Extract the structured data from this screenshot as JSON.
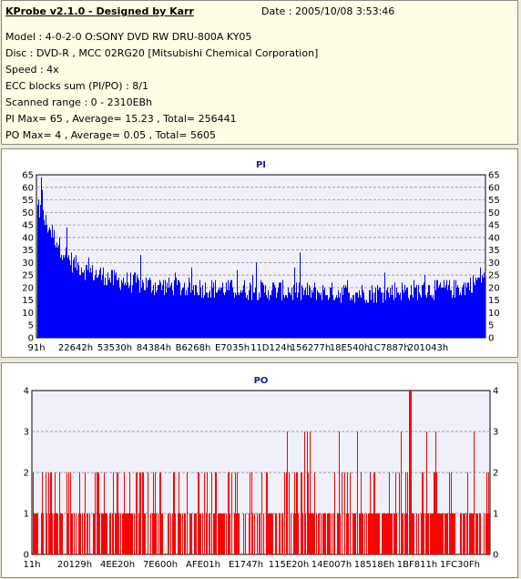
{
  "info": {
    "title": "KProbe v2.1.0 - Designed by Karr",
    "date": "Date : 2005/10/08 3:53:46",
    "model": "Model : 4-0-2-0 O:SONY    DVD RW DRU-800A  KY05",
    "disc": "Disc : DVD-R , MCC 02RG20  [Mitsubishi Chemical Corporation]",
    "speed": "Speed : 4x",
    "ecc": "ECC blocks sum (PI/PO) : 8/1",
    "range": "Scanned range : 0 - 2310EBh",
    "pi_stats": "PI Max= 65 , Average= 15.23 , Total= 256441",
    "po_stats": "PO Max= 4 , Average= 0.05 , Total= 5605"
  },
  "colors": {
    "pi": "#0000ff",
    "po": "#ff0000",
    "plot_bg": "#f0f0fa",
    "grid": "#7f7f7f"
  },
  "chart_data": [
    {
      "type": "bar",
      "title": "PI",
      "ylim": [
        0,
        65
      ],
      "yticks": [
        0,
        5,
        10,
        15,
        20,
        25,
        30,
        35,
        40,
        45,
        50,
        55,
        60,
        65
      ],
      "xtick_labels": [
        "91h",
        "22642h",
        "53530h",
        "84384h",
        "B6268h",
        "E7035h",
        "11D124h",
        "156277h",
        "18E540h",
        "1C7887h",
        "201043h"
      ],
      "grid": "dashed",
      "profile": [
        [
          0.0,
          52
        ],
        [
          0.01,
          50
        ],
        [
          0.02,
          46
        ],
        [
          0.04,
          40
        ],
        [
          0.06,
          34
        ],
        [
          0.08,
          30
        ],
        [
          0.12,
          26
        ],
        [
          0.18,
          23
        ],
        [
          0.25,
          21
        ],
        [
          0.35,
          20
        ],
        [
          0.5,
          19
        ],
        [
          0.65,
          18
        ],
        [
          0.75,
          18
        ],
        [
          0.85,
          19
        ],
        [
          0.95,
          20
        ],
        [
          0.98,
          23
        ],
        [
          1.0,
          26
        ]
      ],
      "max": 65,
      "average": 15.23,
      "total": 256441
    },
    {
      "type": "bar",
      "title": "PO",
      "ylim": [
        0,
        4
      ],
      "yticks": [
        0,
        1,
        2,
        3,
        4
      ],
      "xtick_labels": [
        "11h",
        "20129h",
        "4EE20h",
        "7E600h",
        "AFE01h",
        "E1747h",
        "115E20h",
        "14E007h",
        "18518Eh",
        "1BF811h",
        "1FC30Fh"
      ],
      "grid": "dashed",
      "max": 4,
      "average": 0.05,
      "total": 5605
    }
  ]
}
